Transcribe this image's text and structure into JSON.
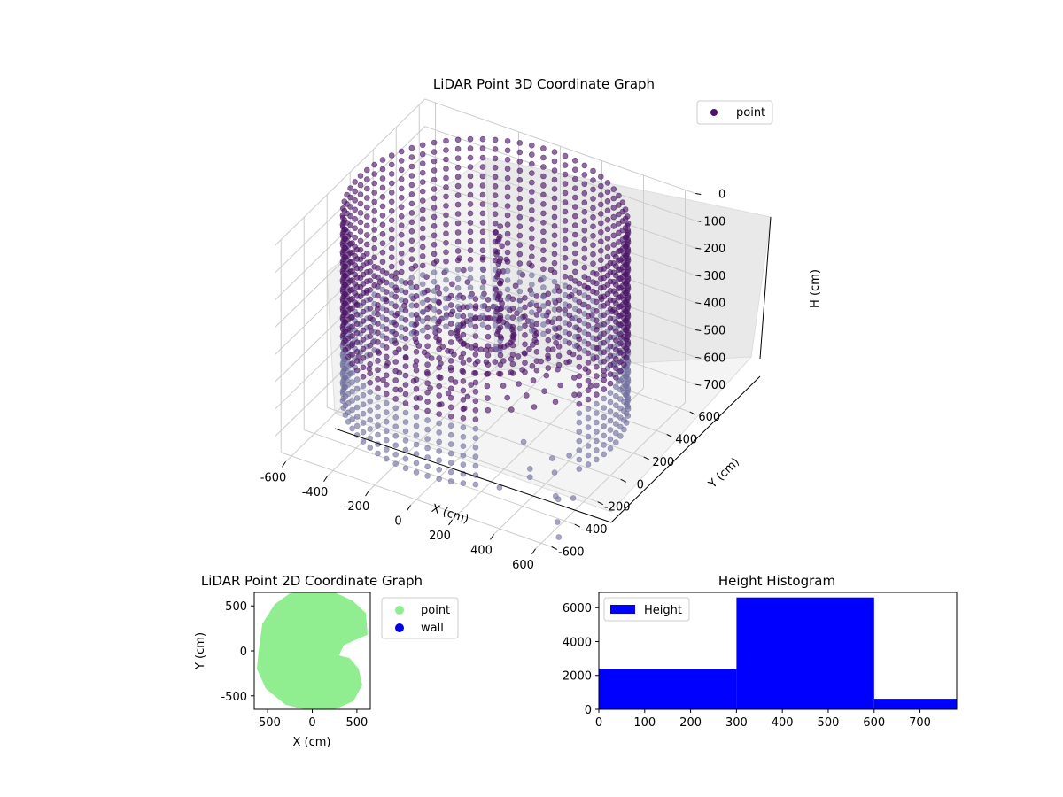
{
  "colors": {
    "point3d": "#4b1466",
    "point3d_light": "#6f6f9e",
    "point2d": "#90ee90",
    "wall": "#0000ee",
    "bar": "#0000ff",
    "pane": "#f2f2f2",
    "grid": "#cccccc"
  },
  "chart_data": [
    {
      "type": "scatter",
      "projection": "3d",
      "title": "LiDAR Point 3D Coordinate Graph",
      "xlabel": "X (cm)",
      "ylabel": "Y (cm)",
      "zlabel": "H (cm)",
      "xlim": [
        -650,
        650
      ],
      "ylim": [
        -650,
        650
      ],
      "zlim": [
        0,
        780
      ],
      "z_inverted": true,
      "x_ticks": [
        -600,
        -400,
        -200,
        0,
        200,
        400,
        600
      ],
      "y_ticks": [
        -600,
        -400,
        -200,
        0,
        200,
        400,
        600
      ],
      "z_ticks": [
        0,
        100,
        200,
        300,
        400,
        500,
        600,
        700
      ],
      "grid": true,
      "legend": {
        "placement": "top-right",
        "entries": [
          {
            "name": "point",
            "color": "#4b1466"
          }
        ]
      },
      "series": [
        {
          "name": "point",
          "shape": "cylindrical room wall",
          "wall_radius": 600,
          "height_range": [
            0,
            680
          ],
          "central_column": {
            "x": 30,
            "y": 60,
            "height_range": [
              40,
              500
            ]
          },
          "scattered_floor_points": [
            [
              520,
              -330,
              740
            ],
            [
              560,
              -380,
              720
            ],
            [
              470,
              -250,
              700
            ],
            [
              600,
              -460,
              760
            ],
            [
              420,
              -180,
              690
            ],
            [
              380,
              -300,
              720
            ],
            [
              640,
              -520,
              780
            ],
            [
              300,
              -420,
              730
            ],
            [
              250,
              -120,
              700
            ],
            [
              480,
              -140,
              680
            ],
            [
              330,
              -210,
              740
            ],
            [
              560,
              -250,
              770
            ]
          ]
        }
      ]
    },
    {
      "type": "scatter",
      "title": "LiDAR Point 2D Coordinate Graph",
      "xlabel": "X (cm)",
      "ylabel": "Y (cm)",
      "xlim": [
        -650,
        650
      ],
      "ylim": [
        -650,
        650
      ],
      "x_ticks": [
        -500,
        0,
        500
      ],
      "y_ticks": [
        -500,
        0,
        500
      ],
      "legend": {
        "placement": "outside right",
        "entries": [
          {
            "name": "point",
            "color": "#90ee90"
          },
          {
            "name": "wall",
            "color": "#0000ee"
          }
        ]
      },
      "series": [
        {
          "name": "point",
          "outline": [
            [
              -600,
              0
            ],
            [
              -560,
              300
            ],
            [
              -420,
              520
            ],
            [
              -250,
              640
            ],
            [
              0,
              670
            ],
            [
              250,
              650
            ],
            [
              450,
              560
            ],
            [
              600,
              420
            ],
            [
              620,
              180
            ],
            [
              480,
              120
            ],
            [
              350,
              60
            ],
            [
              300,
              -50
            ],
            [
              420,
              -80
            ],
            [
              520,
              -200
            ],
            [
              560,
              -380
            ],
            [
              460,
              -560
            ],
            [
              250,
              -650
            ],
            [
              0,
              -670
            ],
            [
              -300,
              -600
            ],
            [
              -520,
              -420
            ],
            [
              -620,
              -200
            ]
          ]
        },
        {
          "name": "wall",
          "points": []
        }
      ]
    },
    {
      "type": "bar",
      "title": "Height Histogram",
      "xlim": [
        0,
        780
      ],
      "ylim": [
        0,
        6900
      ],
      "x_ticks": [
        0,
        100,
        200,
        300,
        400,
        500,
        600,
        700
      ],
      "y_ticks": [
        0,
        2000,
        4000,
        6000
      ],
      "legend": {
        "placement": "top-left",
        "entries": [
          {
            "name": "Height",
            "color": "#0000ff"
          }
        ]
      },
      "series": [
        {
          "name": "Height",
          "bins": [
            {
              "from": 0,
              "to": 300,
              "value": 2350
            },
            {
              "from": 300,
              "to": 600,
              "value": 6600
            },
            {
              "from": 600,
              "to": 780,
              "value": 620
            }
          ]
        }
      ]
    }
  ]
}
